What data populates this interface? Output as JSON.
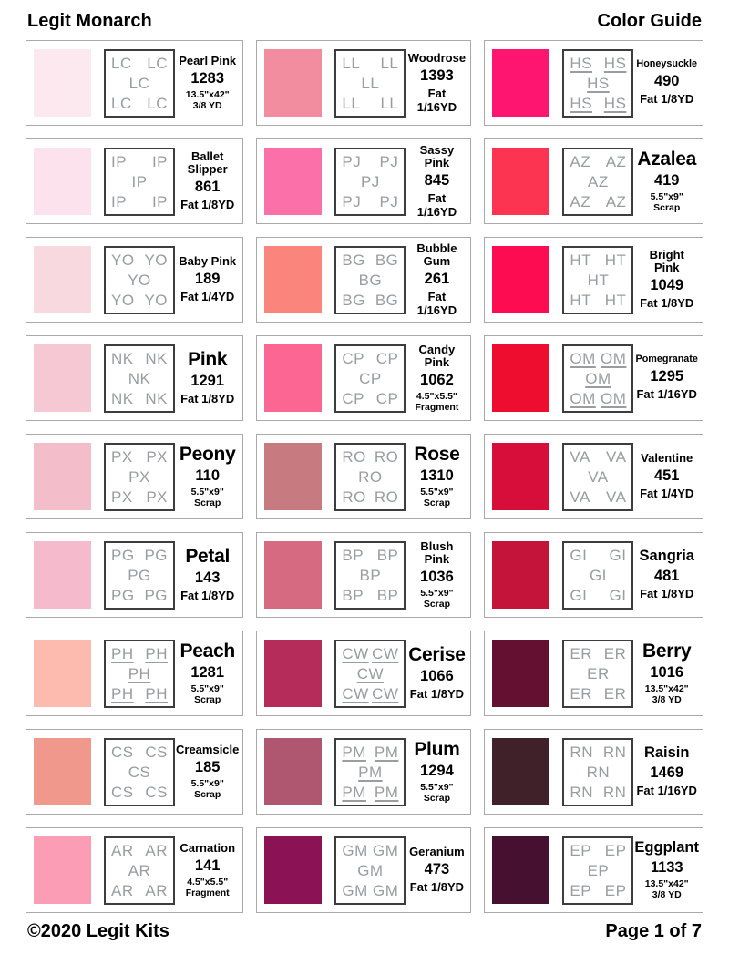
{
  "header": {
    "title": "Legit Monarch",
    "subtitle": "Color Guide"
  },
  "footer": {
    "copyright": "©2020 Legit Kits",
    "page": "Page 1 of 7"
  },
  "code_text_color": "#999ca0",
  "colors": [
    {
      "name_lines": [
        "Pearl Pink"
      ],
      "name_size": "md",
      "number": "1283",
      "amount_lines": [
        "13.5\"x42\"",
        "3/8 YD"
      ],
      "code": "LC",
      "underline": false,
      "hex": "#fce9f0"
    },
    {
      "name_lines": [
        "Woodrose"
      ],
      "name_size": "md",
      "number": "1393",
      "amount_lines": [
        "Fat 1/16YD"
      ],
      "code": "LL",
      "underline": false,
      "hex": "#f28da0"
    },
    {
      "name_lines": [
        "Honeysuckle"
      ],
      "name_size": "sm",
      "number": "490",
      "amount_lines": [
        "Fat 1/8YD"
      ],
      "code": "HS",
      "underline": true,
      "hex": "#fd156f"
    },
    {
      "name_lines": [
        "Ballet",
        "Slipper"
      ],
      "name_size": "md",
      "number": "861",
      "amount_lines": [
        "Fat 1/8YD"
      ],
      "code": "IP",
      "underline": false,
      "hex": "#fce2ec"
    },
    {
      "name_lines": [
        "Sassy",
        "Pink"
      ],
      "name_size": "md",
      "number": "845",
      "amount_lines": [
        "Fat 1/16YD"
      ],
      "code": "PJ",
      "underline": false,
      "hex": "#fc70a9"
    },
    {
      "name_lines": [
        "Azalea"
      ],
      "name_size": "xl",
      "number": "419",
      "amount_lines": [
        "5.5\"x9\"",
        "Scrap"
      ],
      "code": "AZ",
      "underline": false,
      "hex": "#fc3351"
    },
    {
      "name_lines": [
        "Baby Pink"
      ],
      "name_size": "md",
      "number": "189",
      "amount_lines": [
        "Fat 1/4YD"
      ],
      "code": "YO",
      "underline": false,
      "hex": "#f8d9df"
    },
    {
      "name_lines": [
        "Bubble",
        "Gum"
      ],
      "name_size": "md",
      "number": "261",
      "amount_lines": [
        "Fat 1/16YD"
      ],
      "code": "BG",
      "underline": false,
      "hex": "#f9857d"
    },
    {
      "name_lines": [
        "Bright",
        "Pink"
      ],
      "name_size": "md",
      "number": "1049",
      "amount_lines": [
        "Fat 1/8YD"
      ],
      "code": "HT",
      "underline": false,
      "hex": "#fd0c51"
    },
    {
      "name_lines": [
        "Pink"
      ],
      "name_size": "xl",
      "number": "1291",
      "amount_lines": [
        "Fat 1/8YD"
      ],
      "code": "NK",
      "underline": false,
      "hex": "#f6c8d4"
    },
    {
      "name_lines": [
        "Candy",
        "Pink"
      ],
      "name_size": "md",
      "number": "1062",
      "amount_lines": [
        "4.5\"x5.5\"",
        "Fragment"
      ],
      "code": "CP",
      "underline": false,
      "hex": "#fb6693"
    },
    {
      "name_lines": [
        "Pomegranate"
      ],
      "name_size": "sm",
      "number": "1295",
      "amount_lines": [
        "Fat 1/16YD"
      ],
      "code": "OM",
      "underline": true,
      "hex": "#ee0d2e"
    },
    {
      "name_lines": [
        "Peony"
      ],
      "name_size": "xl",
      "number": "110",
      "amount_lines": [
        "5.5\"x9\"",
        "Scrap"
      ],
      "code": "PX",
      "underline": false,
      "hex": "#f3bdca"
    },
    {
      "name_lines": [
        "Rose"
      ],
      "name_size": "xl",
      "number": "1310",
      "amount_lines": [
        "5.5\"x9\"",
        "Scrap"
      ],
      "code": "RO",
      "underline": false,
      "hex": "#c77b81"
    },
    {
      "name_lines": [
        "Valentine"
      ],
      "name_size": "md",
      "number": "451",
      "amount_lines": [
        "Fat 1/4YD"
      ],
      "code": "VA",
      "underline": false,
      "hex": "#d70e3a"
    },
    {
      "name_lines": [
        "Petal"
      ],
      "name_size": "xl",
      "number": "143",
      "amount_lines": [
        "Fat 1/8YD"
      ],
      "code": "PG",
      "underline": false,
      "hex": "#f5bbcc"
    },
    {
      "name_lines": [
        "Blush",
        "Pink"
      ],
      "name_size": "md",
      "number": "1036",
      "amount_lines": [
        "5.5\"x9\"",
        "Scrap"
      ],
      "code": "BP",
      "underline": false,
      "hex": "#d56a80"
    },
    {
      "name_lines": [
        "Sangria"
      ],
      "name_size": "lg",
      "number": "481",
      "amount_lines": [
        "Fat 1/8YD"
      ],
      "code": "GI",
      "underline": false,
      "hex": "#c41439"
    },
    {
      "name_lines": [
        "Peach"
      ],
      "name_size": "xl",
      "number": "1281",
      "amount_lines": [
        "5.5\"x9\"",
        "Scrap"
      ],
      "code": "PH",
      "underline": true,
      "hex": "#fdbbaf"
    },
    {
      "name_lines": [
        "Cerise"
      ],
      "name_size": "xl",
      "number": "1066",
      "amount_lines": [
        "Fat 1/8YD"
      ],
      "code": "CW",
      "underline": true,
      "hex": "#b52b59"
    },
    {
      "name_lines": [
        "Berry"
      ],
      "name_size": "xl",
      "number": "1016",
      "amount_lines": [
        "13.5\"x42\"",
        "3/8 YD"
      ],
      "code": "ER",
      "underline": false,
      "hex": "#631031"
    },
    {
      "name_lines": [
        "Creamsicle"
      ],
      "name_size": "md",
      "number": "185",
      "amount_lines": [
        "5.5\"x9\"",
        "Scrap"
      ],
      "code": "CS",
      "underline": false,
      "hex": "#f1988c"
    },
    {
      "name_lines": [
        "Plum"
      ],
      "name_size": "xl",
      "number": "1294",
      "amount_lines": [
        "5.5\"x9\"",
        "Scrap"
      ],
      "code": "PM",
      "underline": true,
      "hex": "#af5771"
    },
    {
      "name_lines": [
        "Raisin"
      ],
      "name_size": "lg",
      "number": "1469",
      "amount_lines": [
        "Fat 1/16YD"
      ],
      "code": "RN",
      "underline": false,
      "hex": "#402029"
    },
    {
      "name_lines": [
        "Carnation"
      ],
      "name_size": "md",
      "number": "141",
      "amount_lines": [
        "4.5\"x5.5\"",
        "Fragment"
      ],
      "code": "AR",
      "underline": false,
      "hex": "#fc9db6"
    },
    {
      "name_lines": [
        "Geranium"
      ],
      "name_size": "md",
      "number": "473",
      "amount_lines": [
        "Fat 1/8YD"
      ],
      "code": "GM",
      "underline": false,
      "hex": "#8c1256"
    },
    {
      "name_lines": [
        "Eggplant"
      ],
      "name_size": "lg",
      "number": "1133",
      "amount_lines": [
        "13.5\"x42\"",
        "3/8 YD"
      ],
      "code": "EP",
      "underline": false,
      "hex": "#461031"
    }
  ]
}
